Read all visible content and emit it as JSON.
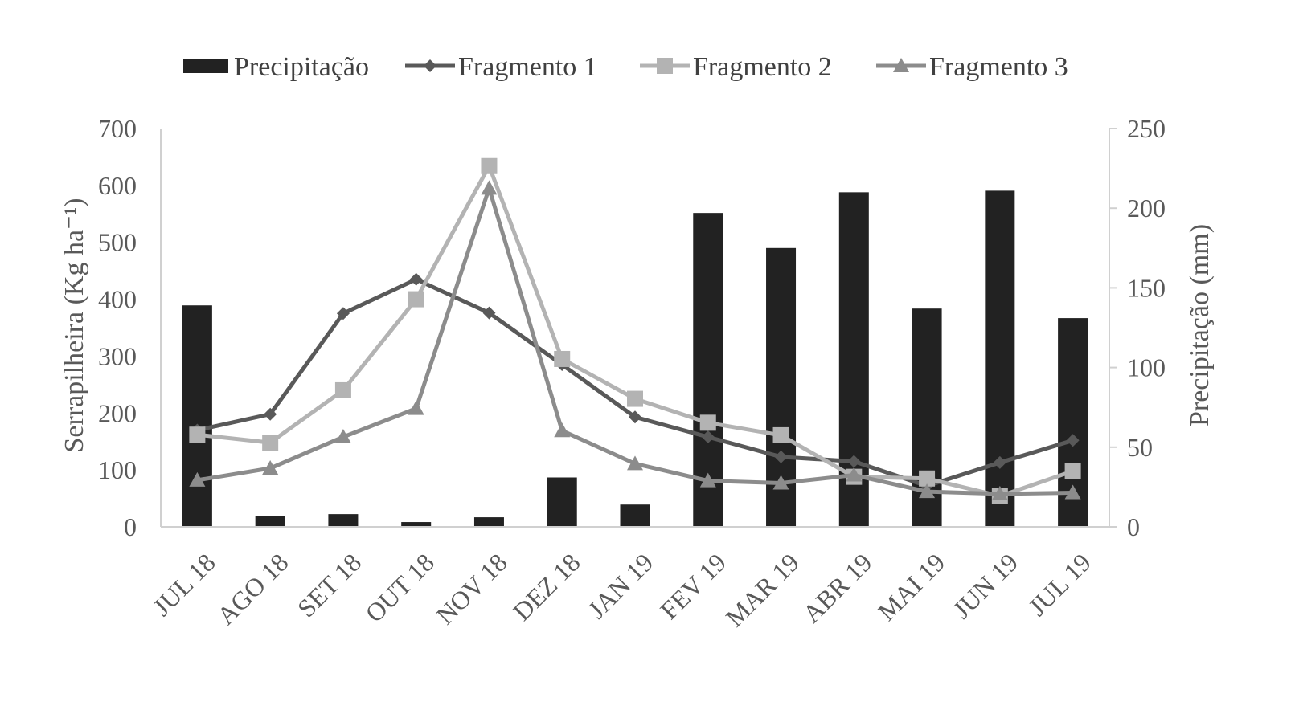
{
  "chart_data": {
    "type": "bar+line",
    "categories": [
      "JUL 18",
      "AGO 18",
      "SET 18",
      "OUT 18",
      "NOV 18",
      "DEZ 18",
      "JAN 19",
      "FEV 19",
      "MAR 19",
      "ABR 19",
      "MAI 19",
      "JUN 19",
      "JUL 19"
    ],
    "bar_series": {
      "name": "Precipitação",
      "axis": "right",
      "color": "#222222",
      "values": [
        139,
        7,
        8,
        3,
        6,
        31,
        14,
        197,
        175,
        210,
        137,
        211,
        131
      ]
    },
    "series": [
      {
        "name": "Fragmento 1",
        "axis": "left",
        "color": "#595959",
        "marker": "diamond",
        "values": [
          170,
          198,
          375,
          435,
          376,
          285,
          193,
          158,
          123,
          115,
          72,
          113,
          152
        ]
      },
      {
        "name": "Fragmento 2",
        "axis": "left",
        "color": "#b3b3b3",
        "marker": "square",
        "values": [
          162,
          148,
          240,
          400,
          634,
          295,
          225,
          183,
          161,
          88,
          85,
          54,
          98
        ]
      },
      {
        "name": "Fragmento 3",
        "axis": "left",
        "color": "#8c8c8c",
        "marker": "triangle",
        "values": [
          82,
          103,
          158,
          208,
          595,
          169,
          111,
          81,
          77,
          91,
          62,
          58,
          60
        ]
      }
    ],
    "ylabel": "Serrapilheira (Kg ha⁻¹)",
    "ylabel_right": "Precipitação (mm)",
    "ylim": [
      0,
      700
    ],
    "yticks": [
      0,
      100,
      200,
      300,
      400,
      500,
      600,
      700
    ],
    "ylim_right": [
      0,
      250
    ],
    "yticks_right": [
      0,
      50,
      100,
      150,
      200,
      250
    ],
    "legend_position": "top-center",
    "grid": false
  }
}
